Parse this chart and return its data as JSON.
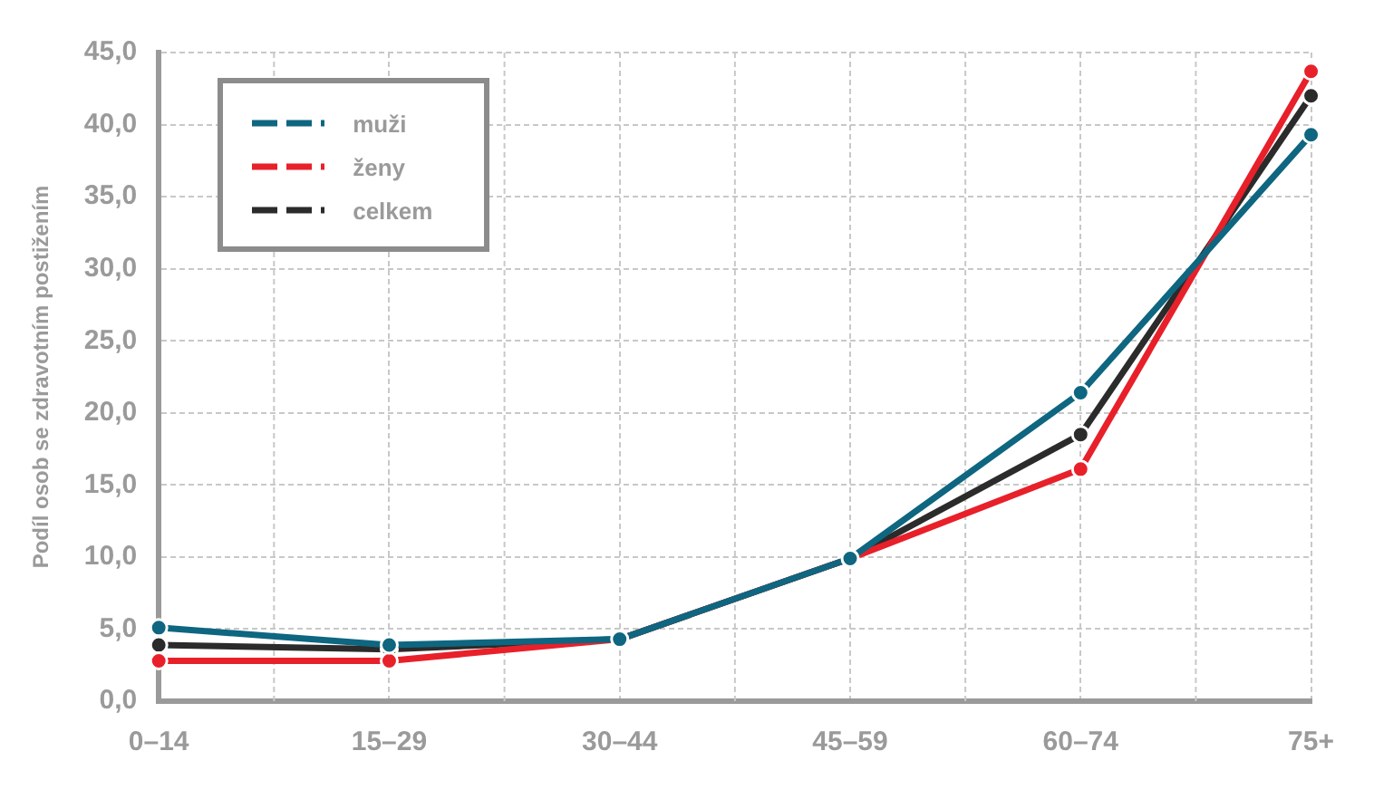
{
  "chart_data": {
    "type": "line",
    "ylabel": "Podíl osob se zdravotním postižením",
    "categories": [
      "0–14",
      "15–29",
      "30–44",
      "45–59",
      "60–74",
      "75+"
    ],
    "series": [
      {
        "name": "muži",
        "color": "#0e6680",
        "values": [
          5.1,
          3.9,
          4.3,
          9.9,
          21.4,
          39.3
        ]
      },
      {
        "name": "ženy",
        "color": "#e8202a",
        "values": [
          2.8,
          2.8,
          4.3,
          9.9,
          16.1,
          43.7
        ]
      },
      {
        "name": "celkem",
        "color": "#2b2b2b",
        "values": [
          3.9,
          3.6,
          4.3,
          9.9,
          18.5,
          42.0
        ]
      }
    ],
    "ylim": [
      0,
      45
    ],
    "yticks": [
      {
        "value": 0,
        "label": "0,0"
      },
      {
        "value": 5,
        "label": "5,0"
      },
      {
        "value": 10,
        "label": "10,0"
      },
      {
        "value": 15,
        "label": "15,0"
      },
      {
        "value": 20,
        "label": "20,0"
      },
      {
        "value": 25,
        "label": "25,0"
      },
      {
        "value": 30,
        "label": "30,0"
      },
      {
        "value": 35,
        "label": "35,0"
      },
      {
        "value": 40,
        "label": "40,0"
      },
      {
        "value": 45,
        "label": "45,0"
      }
    ],
    "grid": true,
    "legend": "top left",
    "marker": "circle",
    "line_style": "solid"
  }
}
